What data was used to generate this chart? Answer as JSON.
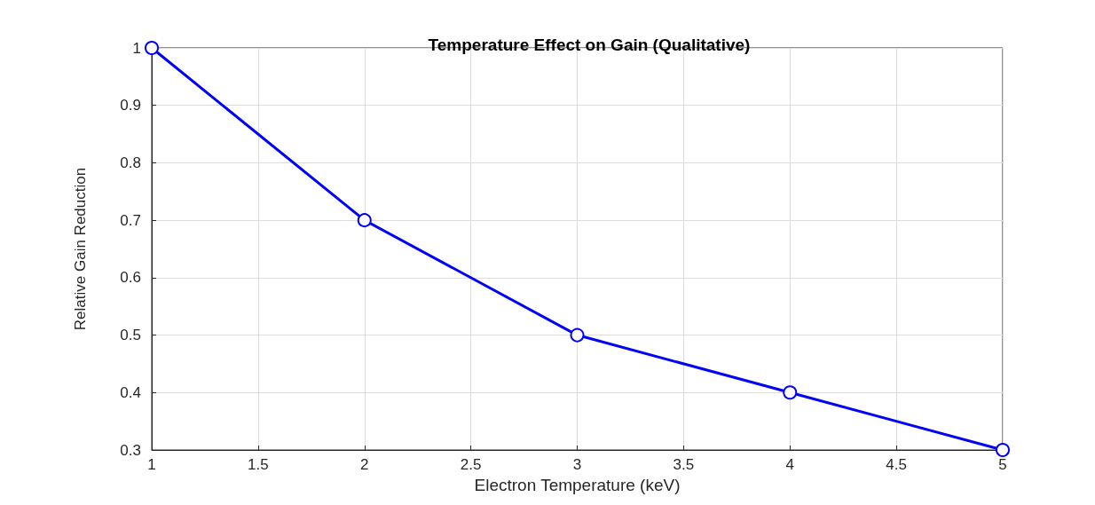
{
  "chart_data": {
    "type": "line",
    "title": "Temperature Effect on Gain (Qualitative)",
    "xlabel": "Electron Temperature (keV)",
    "ylabel": "Relative Gain Reduction",
    "x": [
      1,
      2,
      3,
      4,
      5
    ],
    "series": [
      {
        "color": "#0000ff",
        "values": [
          1,
          0.7,
          0.5,
          0.4,
          0.3
        ]
      }
    ],
    "xlim": [
      1,
      5
    ],
    "xticks": [
      1,
      1.5,
      2,
      2.5,
      3,
      3.5,
      4,
      4.5,
      5
    ],
    "ylim": [
      0.3,
      1
    ],
    "yticks": [
      0.3,
      0.4,
      0.5,
      0.6,
      0.7,
      0.8,
      0.9,
      1
    ],
    "grid": true,
    "marker": "circle",
    "line_style": "solid"
  }
}
